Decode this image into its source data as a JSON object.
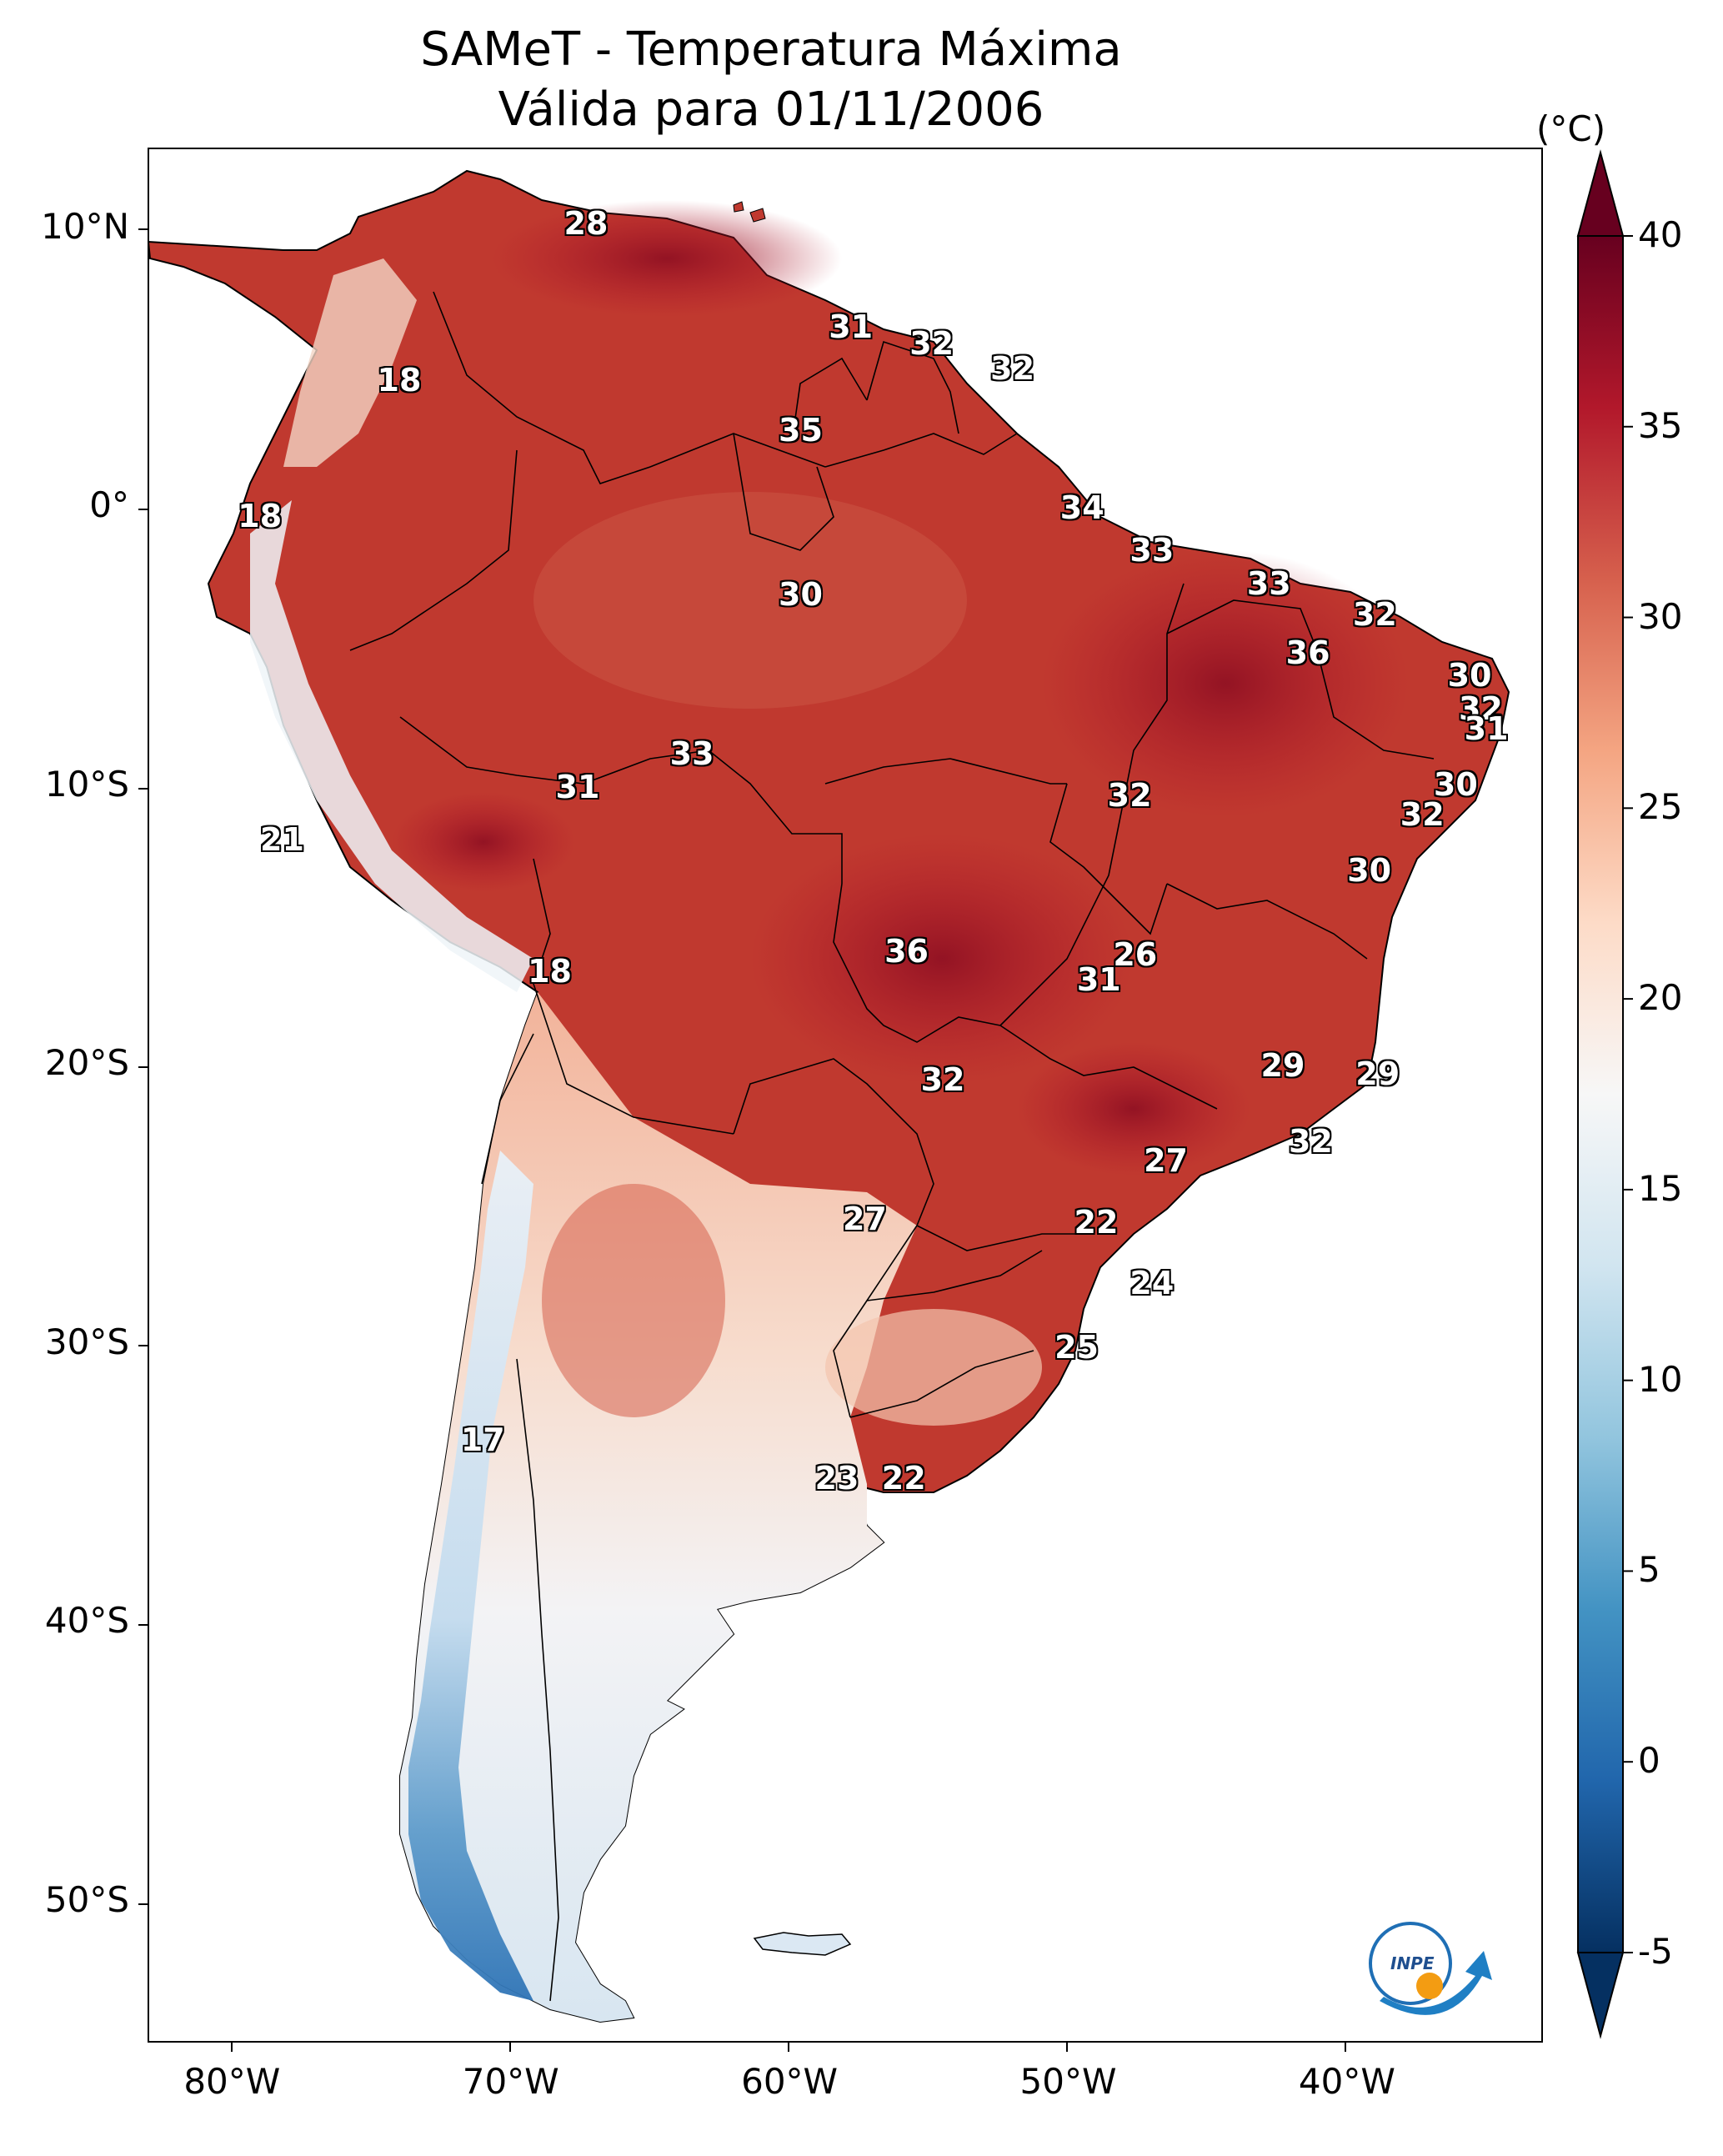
{
  "title": {
    "line1": "SAMeT - Temperatura Máxima",
    "line2": "Válida para 01/11/2006"
  },
  "map": {
    "lon_labels": [
      "80°W",
      "70°W",
      "60°W",
      "50°W",
      "40°W"
    ],
    "lat_labels": [
      "10°N",
      "0°",
      "10°S",
      "20°S",
      "30°S",
      "40°S",
      "50°S"
    ],
    "contour_labels": [
      {
        "text": "28",
        "lon": -67.3,
        "lat": 10.2
      },
      {
        "text": "31",
        "lon": -57.8,
        "lat": 6.5
      },
      {
        "text": "32",
        "lon": -54.9,
        "lat": 5.9
      },
      {
        "text": "32",
        "lon": -52.0,
        "lat": 5.0
      },
      {
        "text": "18",
        "lon": -74.0,
        "lat": 4.6
      },
      {
        "text": "35",
        "lon": -59.6,
        "lat": 2.8
      },
      {
        "text": "34",
        "lon": -49.5,
        "lat": 0.0
      },
      {
        "text": "18",
        "lon": -79.0,
        "lat": -0.3
      },
      {
        "text": "33",
        "lon": -47.0,
        "lat": -1.5
      },
      {
        "text": "33",
        "lon": -42.8,
        "lat": -2.7
      },
      {
        "text": "30",
        "lon": -59.6,
        "lat": -3.1
      },
      {
        "text": "32",
        "lon": -39.0,
        "lat": -3.8
      },
      {
        "text": "36",
        "lon": -41.4,
        "lat": -5.2
      },
      {
        "text": "30",
        "lon": -35.6,
        "lat": -6.0
      },
      {
        "text": "32",
        "lon": -35.2,
        "lat": -7.2
      },
      {
        "text": "31",
        "lon": -35.0,
        "lat": -7.9
      },
      {
        "text": "33",
        "lon": -63.5,
        "lat": -8.8
      },
      {
        "text": "31",
        "lon": -67.6,
        "lat": -10.0
      },
      {
        "text": "32",
        "lon": -47.8,
        "lat": -10.3
      },
      {
        "text": "30",
        "lon": -36.1,
        "lat": -9.9
      },
      {
        "text": "32",
        "lon": -37.3,
        "lat": -11.0
      },
      {
        "text": "21",
        "lon": -78.2,
        "lat": -11.9
      },
      {
        "text": "30",
        "lon": -39.2,
        "lat": -13.0
      },
      {
        "text": "36",
        "lon": -55.8,
        "lat": -15.9
      },
      {
        "text": "26",
        "lon": -47.6,
        "lat": -16.0
      },
      {
        "text": "31",
        "lon": -48.9,
        "lat": -16.9
      },
      {
        "text": "18",
        "lon": -68.6,
        "lat": -16.6
      },
      {
        "text": "29",
        "lon": -42.3,
        "lat": -20.0
      },
      {
        "text": "29",
        "lon": -38.9,
        "lat": -20.3
      },
      {
        "text": "32",
        "lon": -54.5,
        "lat": -20.5
      },
      {
        "text": "32",
        "lon": -41.3,
        "lat": -22.7
      },
      {
        "text": "27",
        "lon": -46.5,
        "lat": -23.4
      },
      {
        "text": "27",
        "lon": -57.3,
        "lat": -25.5
      },
      {
        "text": "22",
        "lon": -49.0,
        "lat": -25.6
      },
      {
        "text": "24",
        "lon": -47.0,
        "lat": -27.8
      },
      {
        "text": "25",
        "lon": -49.7,
        "lat": -30.1
      },
      {
        "text": "17",
        "lon": -71.0,
        "lat": -33.4
      },
      {
        "text": "23",
        "lon": -58.3,
        "lat": -34.8
      },
      {
        "text": "22",
        "lon": -55.9,
        "lat": -34.8
      }
    ]
  },
  "colorbar": {
    "unit": "(°C)",
    "ticks": [
      "40",
      "35",
      "30",
      "25",
      "20",
      "15",
      "10",
      "5",
      "0",
      "-5"
    ],
    "vmin": -5,
    "vmax": 40,
    "colors": [
      "#053061",
      "#2166ac",
      "#4393c3",
      "#92c5de",
      "#d1e5f0",
      "#f7f7f7",
      "#fddbc7",
      "#f4a582",
      "#d6604d",
      "#b2182b",
      "#67001f"
    ]
  },
  "logo": {
    "text": "INPE"
  }
}
